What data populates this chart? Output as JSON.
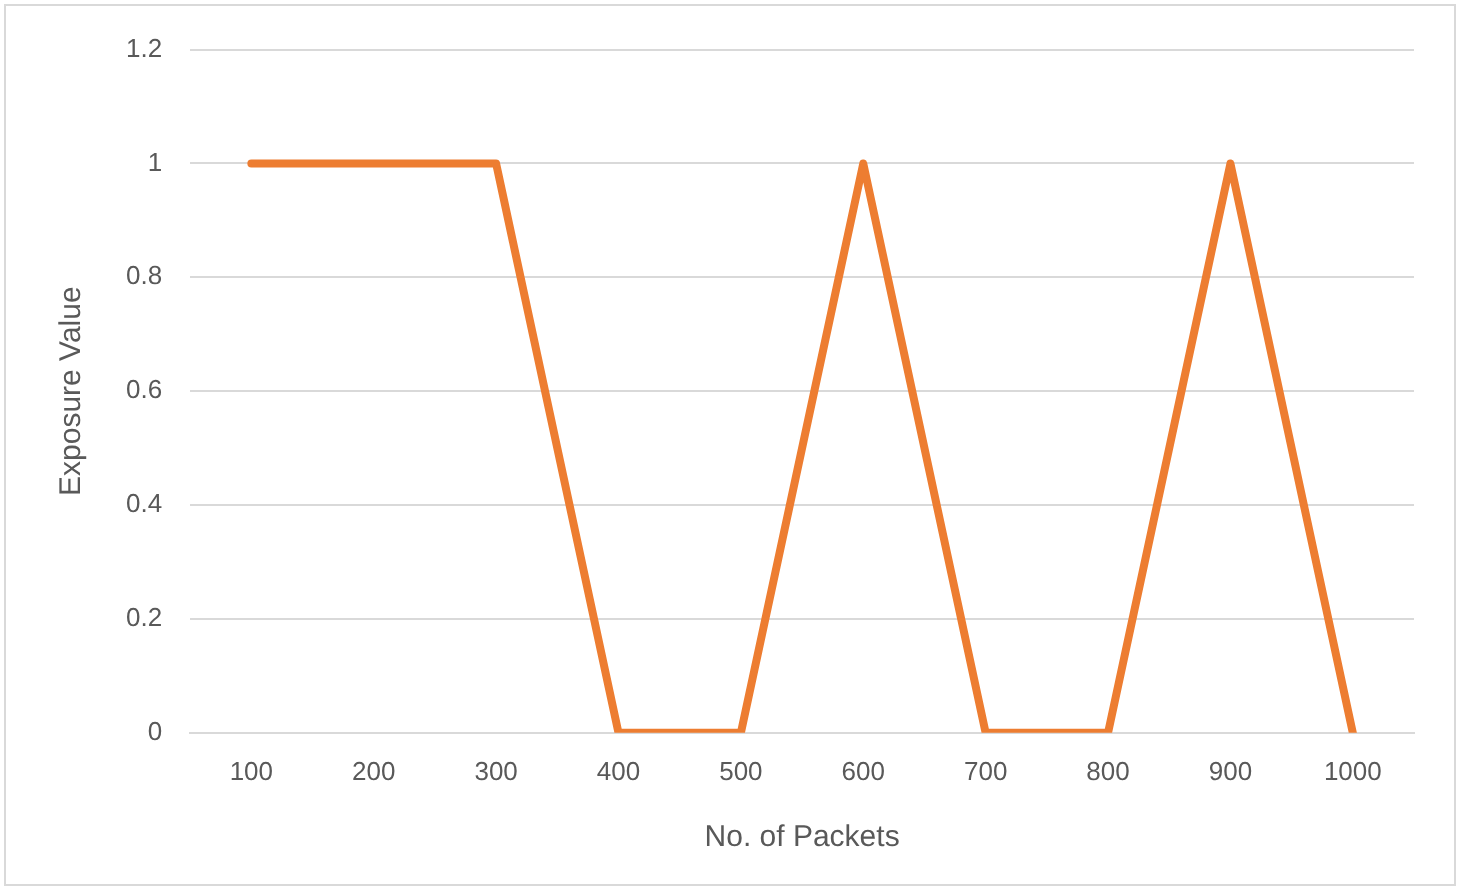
{
  "chart_data": {
    "type": "line",
    "xlabel": "No. of Packets",
    "ylabel": "Exposure Value",
    "categories": [
      "100",
      "200",
      "300",
      "400",
      "500",
      "600",
      "700",
      "800",
      "900",
      "1000"
    ],
    "series": [
      {
        "color": "#ed7d31",
        "values": [
          1,
          1,
          1,
          0,
          0,
          1,
          0,
          0,
          1,
          0
        ]
      }
    ],
    "ylim": [
      0,
      1.2
    ],
    "yticks": [
      0,
      0.2,
      0.4,
      0.6,
      0.8,
      1,
      1.2
    ],
    "grid": "y",
    "legend": false,
    "marker": "none",
    "line_style": "solid"
  }
}
